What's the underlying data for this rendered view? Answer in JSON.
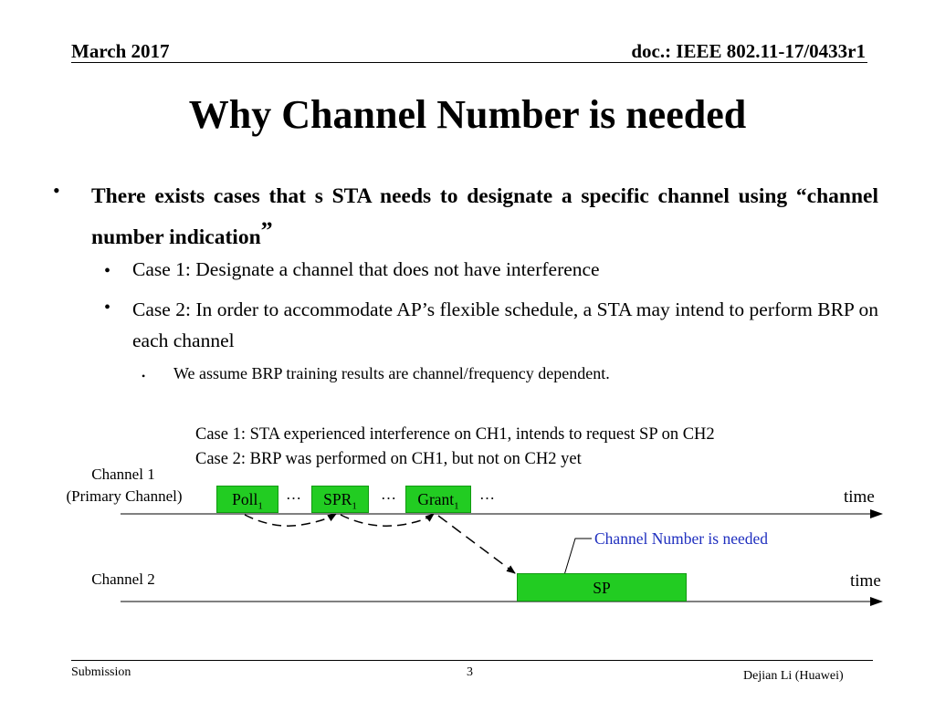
{
  "header": {
    "date": "March 2017",
    "doc_id": "doc.: IEEE 802.11-17/0433r1"
  },
  "title": "Why Channel Number is needed",
  "bullets": {
    "b1_text": "There exists cases that s STA needs to designate a specific channel using “channel number indication",
    "b1_quote": "”",
    "b2": "Case 1: Designate a channel that does not have interference",
    "b3": "Case 2: In order to accommodate AP’s flexible schedule, a STA may intend to perform BRP on each channel",
    "b4": "We assume BRP training results are channel/frequency dependent."
  },
  "diagram": {
    "caption1": "Case 1: STA experienced interference on CH1, intends to request SP on CH2",
    "caption2": "Case 2: BRP was performed on CH1, but not on CH2 yet",
    "channel1_line1": "Channel 1",
    "channel1_line2": "(Primary Channel)",
    "channel2": "Channel 2",
    "time1": "time",
    "time2": "time",
    "poll": "Poll",
    "poll_sub": "1",
    "spr": "SPR",
    "spr_sub": "1",
    "grant": "Grant",
    "grant_sub": "1",
    "ellipsis": "…",
    "sp": "SP",
    "note": "Channel Number is needed",
    "box_color": "#22cc22",
    "note_color": "#1f2fbf"
  },
  "footer": {
    "left": "Submission",
    "page": "3",
    "right": "Dejian Li (Huawei)"
  }
}
